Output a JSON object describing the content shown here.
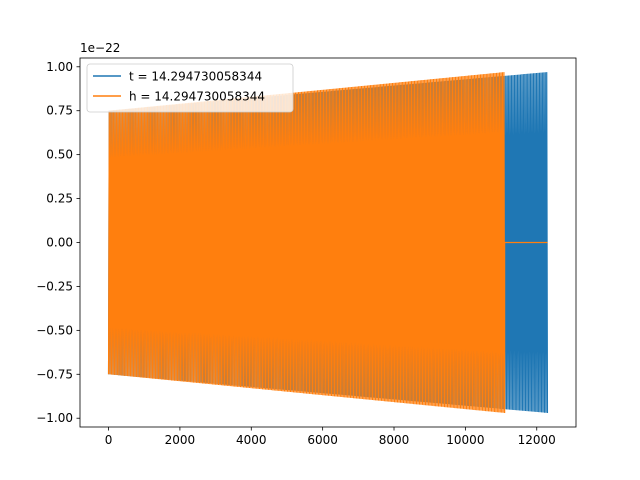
{
  "chart_data": {
    "type": "line",
    "offset_text": "1e−22",
    "xlim": [
      -800,
      13100
    ],
    "ylim": [
      -1.05,
      1.05
    ],
    "x_ticks": [
      0,
      2000,
      4000,
      6000,
      8000,
      10000,
      12000
    ],
    "x_tick_labels": [
      "0",
      "2000",
      "4000",
      "6000",
      "8000",
      "10000",
      "12000"
    ],
    "y_ticks": [
      1.0,
      0.75,
      0.5,
      0.25,
      0.0,
      -0.25,
      -0.5,
      -0.75,
      -1.0
    ],
    "y_tick_labels": [
      "1.00",
      "0.75",
      "0.50",
      "0.25",
      "0.00",
      "−0.25",
      "−0.50",
      "−0.75",
      "−1.00"
    ],
    "grid": false,
    "legend_position": "upper-left",
    "series": [
      {
        "name": "t = 14.294730058344",
        "color": "#1f77b4",
        "signal": {
          "x_start": 0,
          "x_end": 12300,
          "amplitude_start": 0.75,
          "amplitude_end": 0.97,
          "cycles": 300
        }
      },
      {
        "name": "h = 14.294730058344",
        "color": "#ff7f0e",
        "signal": {
          "x_start": 0,
          "x_end": 11100,
          "amplitude_start": 0.75,
          "amplitude_end": 0.97,
          "cycles": 270
        },
        "flat_tail": {
          "x_start": 11100,
          "x_end": 12300,
          "value": 0.0
        }
      }
    ]
  }
}
